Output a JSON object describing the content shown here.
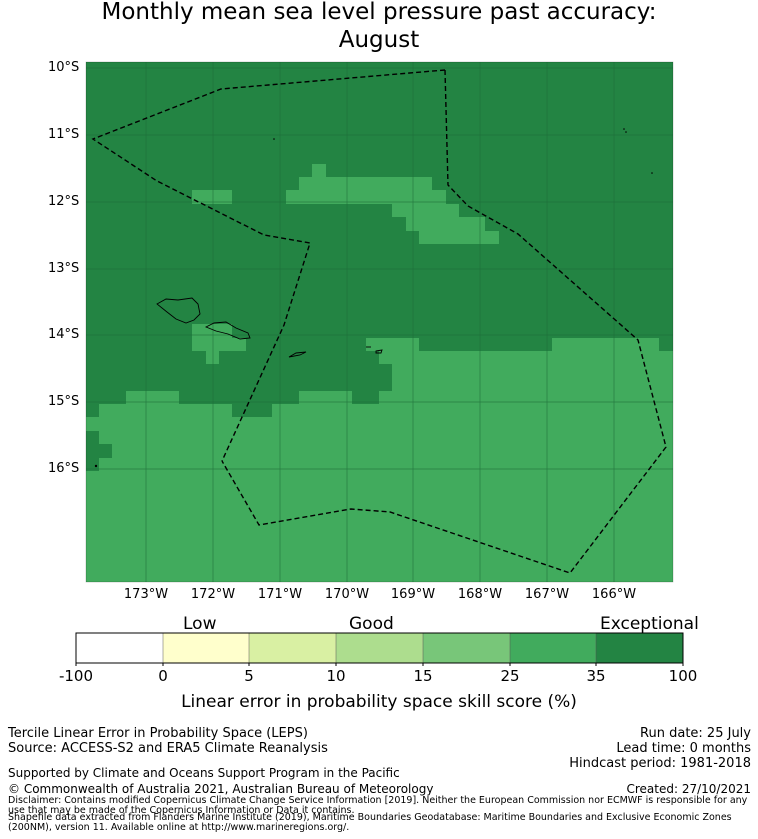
{
  "title": {
    "line1": "Monthly mean sea level pressure past accuracy:",
    "line2": "August"
  },
  "map": {
    "lat_labels": [
      "10°S",
      "11°S",
      "12°S",
      "13°S",
      "14°S",
      "15°S",
      "16°S"
    ],
    "lon_labels": [
      "173°W",
      "172°W",
      "171°W",
      "170°W",
      "169°W",
      "168°W",
      "167°W",
      "166°W"
    ],
    "colors": {
      "exceptional": "#238443",
      "high": "#41ab5d",
      "mid": "#78c679",
      "grid": "#1e6b38",
      "boundary": "#000000"
    }
  },
  "colorbar": {
    "categories": {
      "low": "Low",
      "good": "Good",
      "exceptional": "Exceptional"
    },
    "ticks": [
      "-100",
      "0",
      "5",
      "10",
      "15",
      "25",
      "35",
      "100"
    ],
    "colors": [
      "#ffffff",
      "#ffffcc",
      "#d9f0a3",
      "#addd8e",
      "#78c679",
      "#41ab5d",
      "#238443"
    ],
    "label": "Linear error in probability space skill score (%)"
  },
  "footer": {
    "method": "Tercile Linear Error in Probability Space (LEPS)",
    "source": "Source: ACCESS-S2 and ERA5 Climate Reanalysis",
    "support": "Supported by Climate and Oceans Support Program in the Pacific",
    "copyright": "© Commonwealth of Australia 2021, Australian Bureau of Meteorology",
    "run_date": "Run date: 25 July",
    "lead_time": "Lead time: 0 months",
    "hindcast": "Hindcast period: 1981-2018",
    "created": "Created: 27/10/2021",
    "disclaimer": "Disclaimer: Contains modified Copernicus Climate Change Service Information [2019]. Neither the European Commission nor ECMWF is responsible for any use that may be made of the Copernicus Information or Data it contains.",
    "shapefile": "Shapefile data extracted from Flanders Marine Institute (2019), Maritime Boundaries Geodatabase: Maritime Boundaries and Exclusive Economic Zones (200NM), version 11. Available online at http://www.marineregions.org/."
  }
}
